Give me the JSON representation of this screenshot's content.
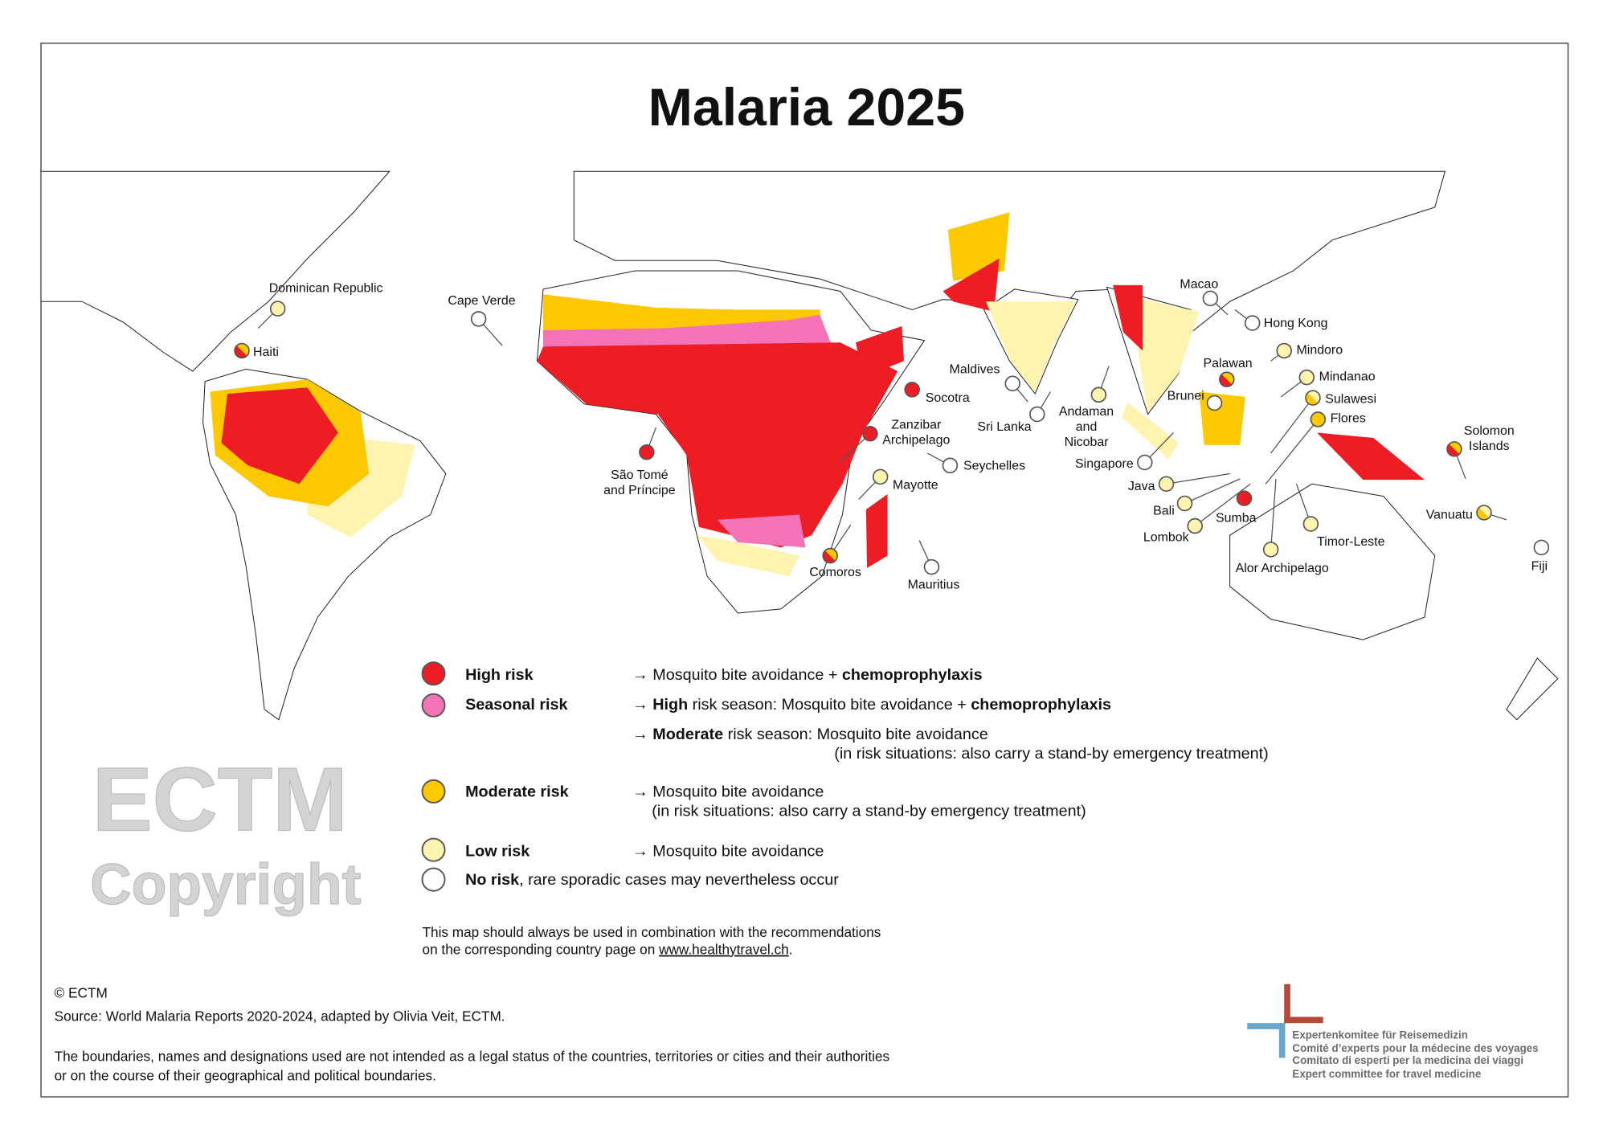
{
  "title": "Malaria 2025",
  "colors": {
    "high": "#ee1c24",
    "seasonal": "#f472b6",
    "moderate": "#fcc800",
    "low": "#fff3b0",
    "none": "#ffffff",
    "logo_red": "#b5493a",
    "logo_blue": "#68a7cc"
  },
  "islands": [
    {
      "name": "Dominican Republic",
      "risk": "low"
    },
    {
      "name": "Haiti",
      "risk": "high/moderate"
    },
    {
      "name": "Cape Verde",
      "risk": "none"
    },
    {
      "name": "São Tomé",
      "name2": "and Príncipe",
      "risk": "high"
    },
    {
      "name": "Zanzibar",
      "name2": "Archipelago",
      "risk": "high"
    },
    {
      "name": "Socotra",
      "risk": "high"
    },
    {
      "name": "Seychelles",
      "risk": "none"
    },
    {
      "name": "Mayotte",
      "risk": "low"
    },
    {
      "name": "Comoros",
      "risk": "high/moderate"
    },
    {
      "name": "Mauritius",
      "risk": "none"
    },
    {
      "name": "Maldives",
      "risk": "none"
    },
    {
      "name": "Sri Lanka",
      "risk": "none"
    },
    {
      "name": "Andaman",
      "name2": "and",
      "name3": "Nicobar",
      "risk": "low"
    },
    {
      "name": "Macao",
      "risk": "none"
    },
    {
      "name": "Hong Kong",
      "risk": "none"
    },
    {
      "name": "Mindoro",
      "risk": "low"
    },
    {
      "name": "Palawan",
      "risk": "high/moderate"
    },
    {
      "name": "Mindanao",
      "risk": "low"
    },
    {
      "name": "Brunei",
      "risk": "none"
    },
    {
      "name": "Sulawesi",
      "risk": "moderate/low"
    },
    {
      "name": "Flores",
      "risk": "moderate"
    },
    {
      "name": "Singapore",
      "risk": "none"
    },
    {
      "name": "Java",
      "risk": "low"
    },
    {
      "name": "Bali",
      "risk": "low"
    },
    {
      "name": "Lombok",
      "risk": "low"
    },
    {
      "name": "Sumba",
      "risk": "high"
    },
    {
      "name": "Timor-Leste",
      "risk": "low"
    },
    {
      "name": "Alor Archipelago",
      "risk": "low"
    },
    {
      "name": "Solomon",
      "name2": "Islands",
      "risk": "high/moderate"
    },
    {
      "name": "Vanuatu",
      "risk": "moderate/low"
    },
    {
      "name": "Fiji",
      "risk": "none"
    }
  ],
  "legend": {
    "high": {
      "label": "High risk",
      "text": "→ Mosquito bite avoidance + ",
      "bold": "chemoprophylaxis"
    },
    "seasonal": {
      "label": "Seasonal risk",
      "a1": "→ ",
      "b1": "High",
      "a2": " risk season: Mosquito bite avoidance + ",
      "b2": "chemoprophylaxis",
      "c1": "→ ",
      "d1": "Moderate",
      "c2": " risk season:  Mosquito bite avoidance",
      "c3": "(in risk situations: also carry a stand-by emergency treatment)"
    },
    "moderate": {
      "label": "Moderate risk",
      "text": "→ Mosquito bite avoidance",
      "text2": "(in risk situations: also carry a stand-by emergency treatment)"
    },
    "low": {
      "label": "Low risk",
      "text": "→ Mosquito bite avoidance"
    },
    "none": {
      "label": "No risk",
      "text": ", rare sporadic cases may nevertheless occur"
    }
  },
  "note": {
    "line1": "This map should always be used in combination with the recommendations",
    "line2": "on the corresponding country page on ",
    "link": "www.healthytravel.ch",
    "end": "."
  },
  "watermark": {
    "line1": "ECTM",
    "line2": "Copyright"
  },
  "footer": {
    "copyright": "© ECTM",
    "source": "Source: World Malaria Reports 2020-2024, adapted by Olivia Veit, ECTM.",
    "disclaimer1": "The boundaries, names and designations used are not intended as a legal status of the countries, territories or cities and their authorities",
    "disclaimer2": "or on the course of their geographical and political boundaries."
  },
  "logo": {
    "de": "Expertenkomitee für Reisemedizin",
    "fr": "Comité d’experts pour la médecine des voyages",
    "it": "Comitato di esperti per la medicina dei viaggi",
    "en": "Expert committee for travel medicine"
  }
}
